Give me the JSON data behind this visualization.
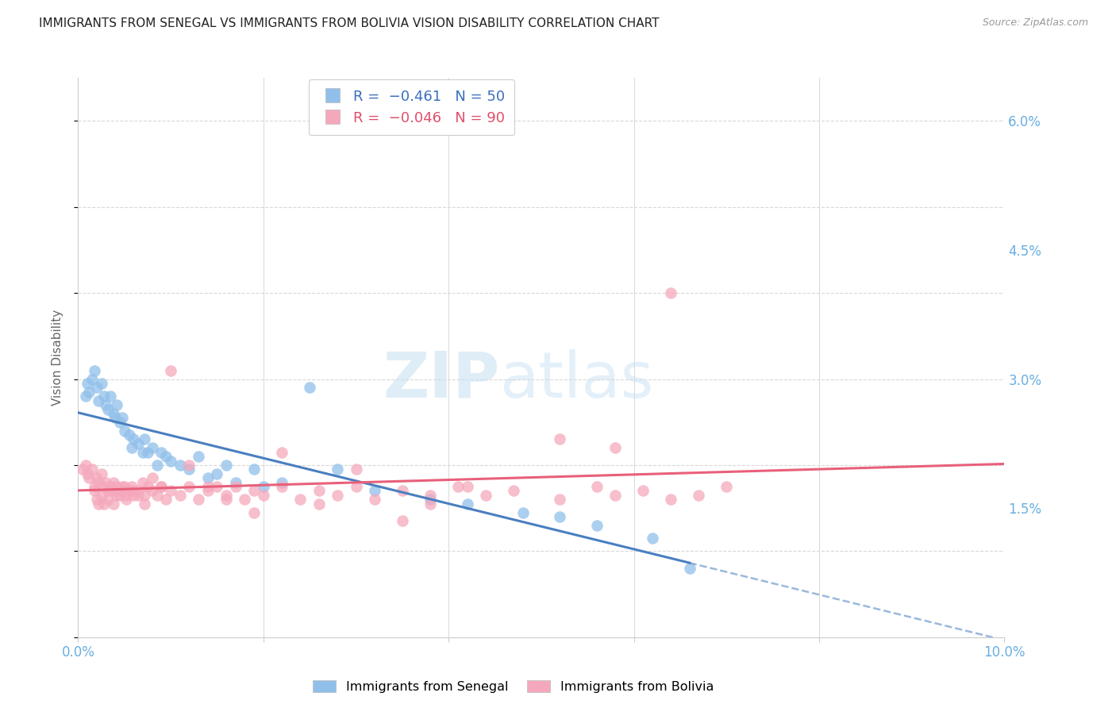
{
  "title": "IMMIGRANTS FROM SENEGAL VS IMMIGRANTS FROM BOLIVIA VISION DISABILITY CORRELATION CHART",
  "source": "Source: ZipAtlas.com",
  "ylabel": "Vision Disability",
  "watermark_zip": "ZIP",
  "watermark_atlas": "atlas",
  "xlim": [
    0.0,
    0.1
  ],
  "ylim": [
    0.0,
    0.065
  ],
  "ytick_labels_right": [
    "6.0%",
    "4.5%",
    "3.0%",
    "1.5%"
  ],
  "ytick_vals_right": [
    0.06,
    0.045,
    0.03,
    0.015
  ],
  "senegal_color": "#90c0ea",
  "bolivia_color": "#f5a8bc",
  "senegal_line_color": "#4a7fc0",
  "bolivia_line_color": "#e8607a",
  "background_color": "#ffffff",
  "grid_color": "#d8d8d8",
  "senegal_x": [
    0.0008,
    0.001,
    0.0012,
    0.0015,
    0.0018,
    0.002,
    0.0022,
    0.0025,
    0.0028,
    0.003,
    0.0032,
    0.0035,
    0.0038,
    0.004,
    0.0042,
    0.0045,
    0.0048,
    0.005,
    0.0055,
    0.0058,
    0.006,
    0.0065,
    0.007,
    0.0072,
    0.0075,
    0.008,
    0.0085,
    0.009,
    0.0095,
    0.01,
    0.011,
    0.012,
    0.013,
    0.014,
    0.015,
    0.016,
    0.017,
    0.019,
    0.02,
    0.022,
    0.025,
    0.028,
    0.032,
    0.038,
    0.042,
    0.048,
    0.052,
    0.056,
    0.062,
    0.066
  ],
  "senegal_y": [
    0.028,
    0.0295,
    0.0285,
    0.03,
    0.031,
    0.029,
    0.0275,
    0.0295,
    0.028,
    0.027,
    0.0265,
    0.028,
    0.026,
    0.0255,
    0.027,
    0.025,
    0.0255,
    0.024,
    0.0235,
    0.022,
    0.023,
    0.0225,
    0.0215,
    0.023,
    0.0215,
    0.022,
    0.02,
    0.0215,
    0.021,
    0.0205,
    0.02,
    0.0195,
    0.021,
    0.0185,
    0.019,
    0.02,
    0.018,
    0.0195,
    0.0175,
    0.018,
    0.029,
    0.0195,
    0.017,
    0.016,
    0.0155,
    0.0145,
    0.014,
    0.013,
    0.0115,
    0.008
  ],
  "bolivia_x": [
    0.0005,
    0.0008,
    0.001,
    0.0012,
    0.0015,
    0.0018,
    0.002,
    0.0022,
    0.0025,
    0.0028,
    0.003,
    0.0032,
    0.0035,
    0.0038,
    0.004,
    0.0042,
    0.0045,
    0.0048,
    0.005,
    0.0052,
    0.0055,
    0.0058,
    0.006,
    0.0065,
    0.007,
    0.0072,
    0.0075,
    0.008,
    0.0085,
    0.009,
    0.0095,
    0.01,
    0.011,
    0.012,
    0.013,
    0.014,
    0.015,
    0.016,
    0.017,
    0.018,
    0.019,
    0.02,
    0.022,
    0.024,
    0.026,
    0.028,
    0.03,
    0.032,
    0.035,
    0.038,
    0.041,
    0.044,
    0.047,
    0.052,
    0.056,
    0.058,
    0.061,
    0.064,
    0.067,
    0.07,
    0.052,
    0.058,
    0.064,
    0.038,
    0.042,
    0.03,
    0.035,
    0.026,
    0.022,
    0.019,
    0.016,
    0.014,
    0.012,
    0.01,
    0.009,
    0.008,
    0.0072,
    0.0065,
    0.0058,
    0.0052,
    0.0048,
    0.0042,
    0.0038,
    0.0035,
    0.0032,
    0.0028,
    0.0025,
    0.0022,
    0.002,
    0.0018
  ],
  "bolivia_y": [
    0.0195,
    0.02,
    0.019,
    0.0185,
    0.0195,
    0.0175,
    0.0185,
    0.018,
    0.019,
    0.0175,
    0.018,
    0.017,
    0.0175,
    0.018,
    0.017,
    0.0175,
    0.0165,
    0.017,
    0.0175,
    0.0165,
    0.017,
    0.0175,
    0.0165,
    0.017,
    0.018,
    0.0165,
    0.0175,
    0.017,
    0.0165,
    0.0175,
    0.016,
    0.017,
    0.0165,
    0.0175,
    0.016,
    0.017,
    0.0175,
    0.0165,
    0.0175,
    0.016,
    0.017,
    0.0165,
    0.0175,
    0.016,
    0.017,
    0.0165,
    0.0175,
    0.016,
    0.017,
    0.0165,
    0.0175,
    0.0165,
    0.017,
    0.016,
    0.0175,
    0.0165,
    0.017,
    0.016,
    0.0165,
    0.0175,
    0.023,
    0.022,
    0.04,
    0.0155,
    0.0175,
    0.0195,
    0.0135,
    0.0155,
    0.0215,
    0.0145,
    0.016,
    0.0175,
    0.02,
    0.031,
    0.0175,
    0.0185,
    0.0155,
    0.0165,
    0.017,
    0.016,
    0.0175,
    0.0165,
    0.0155,
    0.017,
    0.016,
    0.0155,
    0.0165,
    0.0155,
    0.016,
    0.017
  ]
}
